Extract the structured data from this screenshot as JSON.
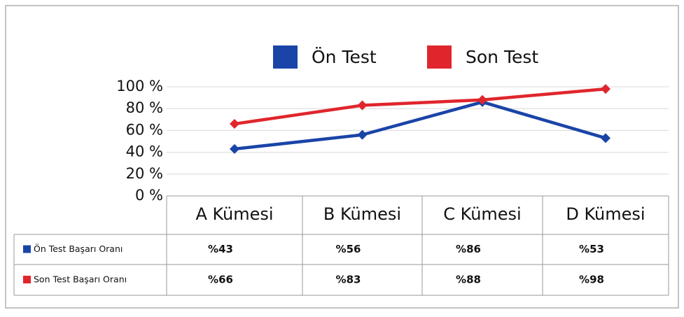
{
  "chart_data": {
    "type": "line",
    "categories": [
      "A Kümesi",
      "B Kümesi",
      "C Kümesi",
      "D Kümesi"
    ],
    "series": [
      {
        "name": "Ön Test",
        "color": "#1a44a8",
        "values": [
          43,
          56,
          86,
          53
        ],
        "row_label": "Ön Test Başarı Oranı",
        "value_labels": [
          "%43",
          "%56",
          "%86",
          "%53"
        ]
      },
      {
        "name": "Son Test",
        "color": "#e0262c",
        "values": [
          66,
          83,
          88,
          98
        ],
        "row_label": "Son Test Başarı Oranı",
        "value_labels": [
          "%66",
          "%83",
          "%88",
          "%98"
        ]
      }
    ],
    "ylim": [
      0,
      100
    ],
    "yticks": [
      {
        "value": 0,
        "label": "0 %"
      },
      {
        "value": 20,
        "label": "20 %"
      },
      {
        "value": 40,
        "label": "40 %"
      },
      {
        "value": 60,
        "label": "60 %"
      },
      {
        "value": 80,
        "label": "80 %"
      },
      {
        "value": 100,
        "label": "100 %"
      }
    ],
    "grid": true,
    "legend": "top"
  }
}
